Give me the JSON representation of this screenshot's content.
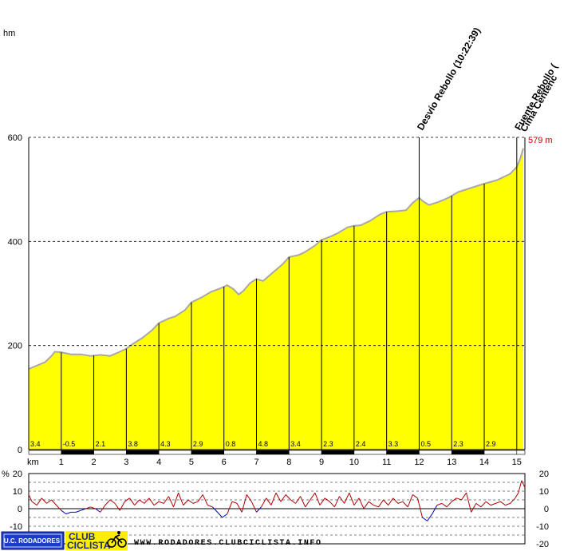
{
  "chart_data": [
    {
      "type": "area",
      "units_label": "hm",
      "distance_label": "km",
      "x_ticks": [
        1,
        2,
        3,
        4,
        5,
        6,
        7,
        8,
        9,
        10,
        11,
        12,
        13,
        14,
        15
      ],
      "y_ticks": [
        0,
        200,
        400,
        600
      ],
      "xlim": [
        0,
        15.25
      ],
      "ylim": [
        0,
        600
      ],
      "max_label": "579 m",
      "profile": {
        "x": [
          0,
          0.2,
          0.5,
          0.7,
          0.8,
          1.0,
          1.3,
          1.6,
          1.9,
          2.2,
          2.5,
          2.8,
          3.0,
          3.2,
          3.5,
          3.8,
          4.0,
          4.3,
          4.5,
          4.8,
          5.0,
          5.3,
          5.6,
          5.9,
          6.1,
          6.3,
          6.45,
          6.6,
          6.8,
          7.0,
          7.2,
          7.5,
          7.8,
          8.0,
          8.3,
          8.5,
          8.8,
          9.0,
          9.3,
          9.5,
          9.8,
          10.0,
          10.2,
          10.5,
          10.8,
          11.0,
          11.3,
          11.6,
          11.8,
          12.0,
          12.1,
          12.3,
          12.6,
          12.9,
          13.2,
          13.6,
          14.0,
          14.4,
          14.8,
          15.0,
          15.1,
          15.2
        ],
        "y": [
          155,
          160,
          168,
          180,
          188,
          187,
          183,
          183,
          180,
          182,
          180,
          188,
          194,
          203,
          215,
          230,
          243,
          252,
          256,
          268,
          283,
          292,
          303,
          310,
          316,
          308,
          298,
          305,
          320,
          328,
          324,
          340,
          356,
          370,
          374,
          380,
          392,
          403,
          410,
          416,
          427,
          430,
          431,
          440,
          452,
          457,
          458,
          460,
          474,
          484,
          478,
          470,
          476,
          484,
          495,
          503,
          511,
          518,
          530,
          543,
          558,
          579
        ]
      },
      "waypoints": [
        {
          "name": "Desvío Rebollo (10:22:39)",
          "km": 12.0
        },
        {
          "name": "Fuente Rebollo (",
          "km": 15.0
        },
        {
          "name": "Cima Centenc",
          "km": 15.12
        }
      ],
      "segments": [
        {
          "km": 0,
          "grade": "3.4"
        },
        {
          "km": 1,
          "grade": "-0.5"
        },
        {
          "km": 2,
          "grade": "2.1"
        },
        {
          "km": 3,
          "grade": "3.8"
        },
        {
          "km": 4,
          "grade": "4.3"
        },
        {
          "km": 5,
          "grade": "2.9"
        },
        {
          "km": 6,
          "grade": "0.8"
        },
        {
          "km": 7,
          "grade": "4.8"
        },
        {
          "km": 8,
          "grade": "3.4"
        },
        {
          "km": 9,
          "grade": "2.3"
        },
        {
          "km": 10,
          "grade": "2.4"
        },
        {
          "km": 11,
          "grade": "3.3"
        },
        {
          "km": 12,
          "grade": "0.5"
        },
        {
          "km": 13,
          "grade": "2.3"
        },
        {
          "km": 14,
          "grade": "2.9"
        }
      ],
      "colors": {
        "fill": "#ffff00",
        "profile_line": "#a8a8a8",
        "max_label": "#d00000"
      }
    },
    {
      "type": "line",
      "units_label": "%",
      "left_ticks": [
        20,
        10,
        0,
        -10
      ],
      "right_ticks": [
        20,
        10,
        0,
        -10,
        -20
      ],
      "ylim": [
        -20,
        20
      ],
      "grade": {
        "x": [
          0,
          0.1,
          0.25,
          0.4,
          0.55,
          0.7,
          0.85,
          1.0,
          1.15,
          1.3,
          1.45,
          1.6,
          1.75,
          1.9,
          2.05,
          2.2,
          2.35,
          2.5,
          2.65,
          2.8,
          2.95,
          3.1,
          3.25,
          3.4,
          3.55,
          3.7,
          3.85,
          4.0,
          4.15,
          4.3,
          4.45,
          4.6,
          4.75,
          4.9,
          5.05,
          5.2,
          5.35,
          5.5,
          5.65,
          5.8,
          5.95,
          6.1,
          6.25,
          6.4,
          6.55,
          6.7,
          6.85,
          7.0,
          7.15,
          7.3,
          7.45,
          7.6,
          7.75,
          7.9,
          8.05,
          8.2,
          8.35,
          8.5,
          8.65,
          8.8,
          8.95,
          9.1,
          9.25,
          9.4,
          9.55,
          9.7,
          9.85,
          10.0,
          10.15,
          10.3,
          10.45,
          10.6,
          10.75,
          10.9,
          11.05,
          11.2,
          11.35,
          11.5,
          11.65,
          11.8,
          11.95,
          12.1,
          12.25,
          12.4,
          12.55,
          12.7,
          12.85,
          13.0,
          13.15,
          13.3,
          13.45,
          13.6,
          13.75,
          13.9,
          14.05,
          14.2,
          14.35,
          14.5,
          14.65,
          14.8,
          14.95,
          15.05,
          15.15,
          15.25
        ],
        "y": [
          8,
          4,
          2,
          6,
          3,
          5,
          2,
          -1,
          -3,
          -2,
          -2,
          -1,
          0,
          1,
          0,
          -2,
          2,
          5,
          3,
          -1,
          4,
          6,
          2,
          5,
          3,
          6,
          2,
          4,
          3,
          7,
          1,
          9,
          2,
          5,
          3,
          4,
          8,
          2,
          1,
          -2,
          -5,
          -3,
          4,
          3,
          -2,
          8,
          4,
          -2,
          1,
          6,
          2,
          9,
          4,
          8,
          5,
          3,
          7,
          1,
          5,
          9,
          2,
          6,
          4,
          1,
          7,
          3,
          9,
          2,
          6,
          0,
          4,
          2,
          1,
          5,
          2,
          6,
          3,
          4,
          1,
          8,
          6,
          -5,
          -7,
          -3,
          2,
          3,
          1,
          4,
          6,
          5,
          9,
          -2,
          3,
          1,
          4,
          2,
          3,
          4,
          2,
          3,
          6,
          9,
          16,
          12
        ]
      },
      "colors": {
        "positive": "#b00000",
        "negative": "#0000c8"
      }
    }
  ],
  "footer": {
    "logo_text": "U.C. RODADORES",
    "club_line1": "CLUB",
    "club_line2": "CICLISTA",
    "website": "WWW.RODADORES.CLUBCICLISTA.INFO"
  }
}
